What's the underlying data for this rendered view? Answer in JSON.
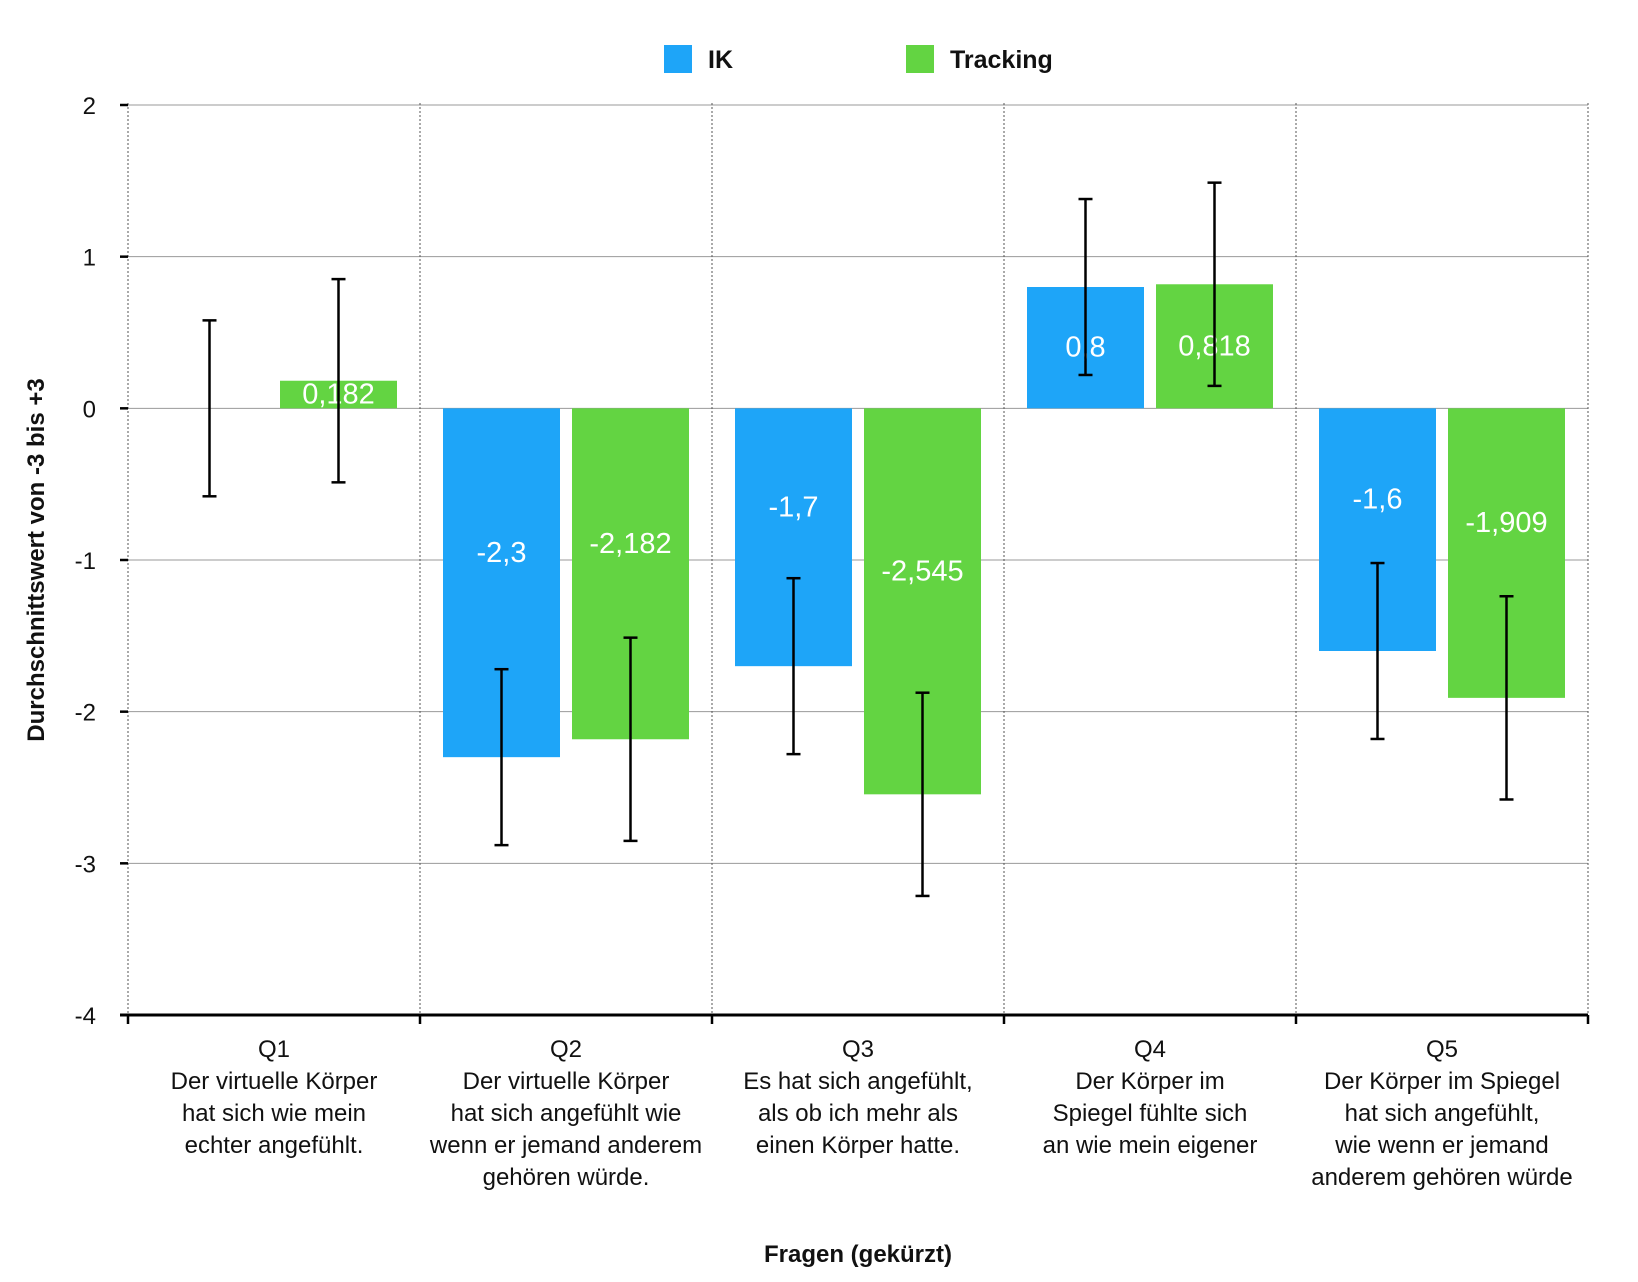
{
  "chart_data": {
    "type": "bar",
    "title": "",
    "xlabel": "Fragen (gekürzt)",
    "ylabel": "Durchschnittswert von -3 bis +3",
    "ylim": [
      -4,
      2
    ],
    "yticks": [
      "2",
      "1",
      "0",
      "-1",
      "-2",
      "-3",
      "-4"
    ],
    "grid": true,
    "legend_position": "top",
    "categories": [
      [
        "Q1",
        "Der virtuelle Körper",
        "hat sich wie mein",
        "echter angefühlt."
      ],
      [
        "Q2",
        "Der virtuelle Körper",
        "hat sich angefühlt wie",
        "wenn er jemand anderem",
        "gehören würde."
      ],
      [
        "Q3",
        "Es hat sich angefühlt,",
        "als ob ich mehr als",
        "einen Körper hatte."
      ],
      [
        "Q4",
        "Der Körper im",
        "Spiegel fühlte sich",
        "an wie mein eigener"
      ],
      [
        "Q5",
        "Der Körper im Spiegel",
        "hat sich angefühlt,",
        "wie wenn er jemand",
        "anderem gehören würde"
      ]
    ],
    "series": [
      {
        "name": "IK",
        "color": "#1EA5F8",
        "values": [
          0,
          -2.3,
          -1.7,
          0.8,
          -1.6
        ],
        "labels": [
          "",
          "-2,3",
          "-1,7",
          "0,8",
          "-1,6"
        ],
        "errors": [
          0.58,
          0.58,
          0.58,
          0.58,
          0.58
        ]
      },
      {
        "name": "Tracking",
        "color": "#63D442",
        "values": [
          0.182,
          -2.182,
          -2.545,
          0.818,
          -1.909
        ],
        "labels": [
          "0,182",
          "-2,182",
          "-2,545",
          "0,818",
          "-1,909"
        ],
        "errors": [
          0.67,
          0.67,
          0.67,
          0.67,
          0.67
        ]
      }
    ]
  }
}
